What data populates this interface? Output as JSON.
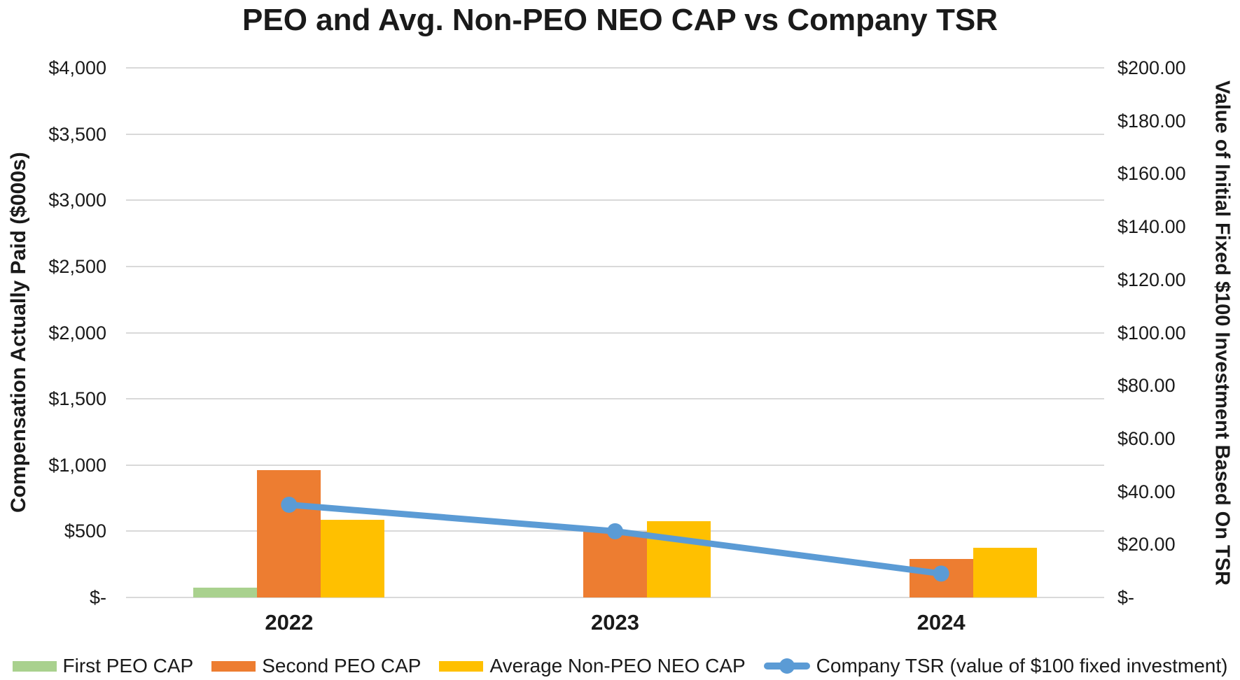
{
  "chart_data": {
    "type": "combo-bar-line",
    "title": "PEO and Avg. Non-PEO NEO CAP vs Company TSR",
    "categories": [
      "2022",
      "2023",
      "2024"
    ],
    "series": [
      {
        "name": "First PEO CAP",
        "kind": "bar",
        "axis": "left",
        "color": "#a9d18e",
        "values": [
          75,
          null,
          null
        ]
      },
      {
        "name": "Second PEO CAP",
        "kind": "bar",
        "axis": "left",
        "color": "#ed7d31",
        "values": [
          960,
          495,
          290
        ]
      },
      {
        "name": "Average Non-PEO NEO CAP",
        "kind": "bar",
        "axis": "left",
        "color": "#ffc000",
        "values": [
          585,
          575,
          375
        ]
      },
      {
        "name": "Company TSR (value of $100 fixed investment)",
        "kind": "line",
        "axis": "right",
        "color": "#5b9bd5",
        "values": [
          35,
          25,
          9
        ]
      }
    ],
    "left_axis": {
      "title": "Compensation Actually Paid ($000s)",
      "min": 0,
      "max": 4000,
      "step": 500,
      "tick_labels": [
        "$4,000",
        "$3,500",
        "$3,000",
        "$2,500",
        "$2,000",
        "$1,500",
        "$1,000",
        "$500",
        "$-"
      ]
    },
    "right_axis": {
      "title": "Value of Initial Fixed $100 Investment Based On TSR",
      "min": 0,
      "max": 200,
      "step": 20,
      "tick_labels": [
        "$200.00",
        "$180.00",
        "$160.00",
        "$140.00",
        "$120.00",
        "$100.00",
        "$80.00",
        "$60.00",
        "$40.00",
        "$20.00",
        "$-"
      ]
    },
    "grid": "horizontal",
    "grid_color": "#d9d9d9",
    "text_color": "#1a1a1a",
    "legend_position": "bottom"
  }
}
